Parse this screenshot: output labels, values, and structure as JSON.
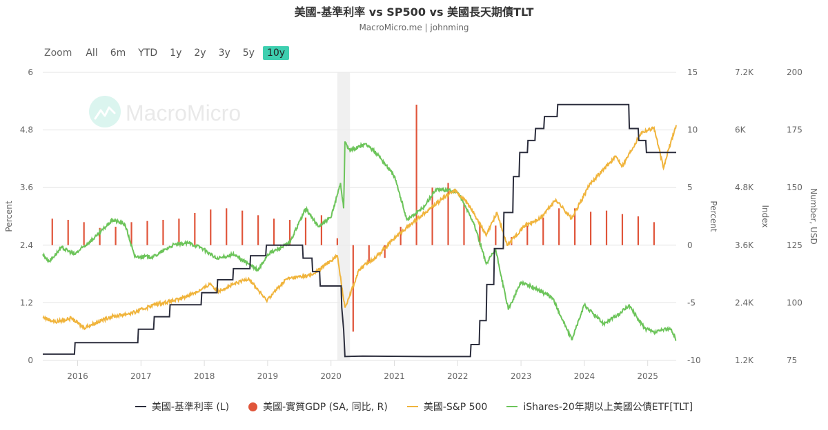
{
  "header": {
    "title": "美國-基準利率 vs SP500 vs 美國長天期債TLT",
    "subtitle": "MacroMicro.me | johnming"
  },
  "range_selector": {
    "label": "Zoom",
    "buttons": [
      "All",
      "6m",
      "YTD",
      "1y",
      "2y",
      "3y",
      "5y",
      "10y"
    ],
    "active": "10y",
    "active_color": "#3ecfb0"
  },
  "watermark": {
    "text": "MacroMicro",
    "icon": "macromicro-logo-icon"
  },
  "legend": [
    {
      "label": "美國-基準利率 (L)",
      "color": "#2b2d3c",
      "symbol": "line"
    },
    {
      "label": "美國-實質GDP (SA, 同比, R)",
      "color": "#e0553a",
      "symbol": "dot"
    },
    {
      "label": "美國-S&P 500",
      "color": "#f0b43c",
      "symbol": "line"
    },
    {
      "label": "iShares-20年期以上美國公債ETF[TLT]",
      "color": "#6cc45a",
      "symbol": "line"
    }
  ],
  "axes": {
    "left": {
      "title": "Percent",
      "ticks": [
        "6",
        "4.8",
        "3.6",
        "2.4",
        "1.2",
        "0"
      ]
    },
    "right1": {
      "title": "Percent",
      "ticks": [
        "15",
        "10",
        "5",
        "0",
        "-5",
        "-10"
      ]
    },
    "right2": {
      "title": "Index",
      "ticks": [
        "7.2K",
        "6K",
        "4.8K",
        "3.6K",
        "2.4K",
        "1.2K"
      ]
    },
    "right3": {
      "title": "Number, USD",
      "ticks": [
        "200",
        "175",
        "150",
        "125",
        "100",
        "75"
      ]
    },
    "x": {
      "ticks": [
        "2016",
        "2017",
        "2018",
        "2019",
        "2020",
        "2021",
        "2022",
        "2023",
        "2024",
        "2025"
      ]
    }
  },
  "chart_data": {
    "type": "line",
    "title": "美國-基準利率 vs SP500 vs 美國長天期債TLT",
    "subtitle": "MacroMicro.me | johnming",
    "x_range": [
      2015.45,
      2025.45
    ],
    "recession_band": [
      2020.1,
      2020.3
    ],
    "grid": true,
    "legend_position": "bottom",
    "series": [
      {
        "name": "美國-基準利率 (L)",
        "axis": "left",
        "ylim": [
          0,
          6
        ],
        "type": "step",
        "points": [
          [
            2015.45,
            0.13
          ],
          [
            2015.95,
            0.13
          ],
          [
            2015.96,
            0.37
          ],
          [
            2016.95,
            0.37
          ],
          [
            2016.96,
            0.65
          ],
          [
            2017.2,
            0.65
          ],
          [
            2017.21,
            0.91
          ],
          [
            2017.45,
            0.91
          ],
          [
            2017.46,
            1.16
          ],
          [
            2017.95,
            1.16
          ],
          [
            2017.96,
            1.41
          ],
          [
            2018.2,
            1.41
          ],
          [
            2018.21,
            1.68
          ],
          [
            2018.45,
            1.68
          ],
          [
            2018.46,
            1.91
          ],
          [
            2018.72,
            1.91
          ],
          [
            2018.73,
            2.18
          ],
          [
            2018.97,
            2.18
          ],
          [
            2018.98,
            2.4
          ],
          [
            2019.55,
            2.4
          ],
          [
            2019.56,
            2.13
          ],
          [
            2019.7,
            2.13
          ],
          [
            2019.71,
            1.85
          ],
          [
            2019.82,
            1.85
          ],
          [
            2019.83,
            1.55
          ],
          [
            2020.16,
            1.55
          ],
          [
            2020.17,
            1.1
          ],
          [
            2020.2,
            0.65
          ],
          [
            2020.22,
            0.08
          ],
          [
            2020.5,
            0.09
          ],
          [
            2021.5,
            0.08
          ],
          [
            2022.2,
            0.08
          ],
          [
            2022.21,
            0.33
          ],
          [
            2022.34,
            0.33
          ],
          [
            2022.35,
            0.83
          ],
          [
            2022.45,
            0.83
          ],
          [
            2022.46,
            1.58
          ],
          [
            2022.57,
            1.58
          ],
          [
            2022.58,
            2.33
          ],
          [
            2022.72,
            2.33
          ],
          [
            2022.73,
            3.08
          ],
          [
            2022.87,
            3.08
          ],
          [
            2022.88,
            3.83
          ],
          [
            2022.97,
            3.83
          ],
          [
            2022.98,
            4.33
          ],
          [
            2023.1,
            4.33
          ],
          [
            2023.11,
            4.58
          ],
          [
            2023.22,
            4.58
          ],
          [
            2023.23,
            4.83
          ],
          [
            2023.36,
            4.83
          ],
          [
            2023.37,
            5.08
          ],
          [
            2023.57,
            5.08
          ],
          [
            2023.58,
            5.33
          ],
          [
            2024.7,
            5.33
          ],
          [
            2024.71,
            4.83
          ],
          [
            2024.85,
            4.83
          ],
          [
            2024.86,
            4.58
          ],
          [
            2024.97,
            4.58
          ],
          [
            2024.98,
            4.33
          ],
          [
            2025.45,
            4.33
          ]
        ]
      },
      {
        "name": "美國-實質GDP (SA, 同比, R)",
        "axis": "right1",
        "ylim": [
          -10,
          15
        ],
        "type": "bar",
        "points": [
          [
            2015.6,
            2.3
          ],
          [
            2015.85,
            2.2
          ],
          [
            2016.1,
            2.0
          ],
          [
            2016.35,
            1.5
          ],
          [
            2016.6,
            1.6
          ],
          [
            2016.85,
            2.0
          ],
          [
            2017.1,
            2.1
          ],
          [
            2017.35,
            2.2
          ],
          [
            2017.6,
            2.3
          ],
          [
            2017.85,
            2.8
          ],
          [
            2018.1,
            3.1
          ],
          [
            2018.35,
            3.2
          ],
          [
            2018.6,
            3.0
          ],
          [
            2018.85,
            2.6
          ],
          [
            2019.1,
            2.3
          ],
          [
            2019.35,
            2.2
          ],
          [
            2019.6,
            2.4
          ],
          [
            2019.85,
            2.6
          ],
          [
            2020.1,
            0.6
          ],
          [
            2020.35,
            -7.5
          ],
          [
            2020.6,
            -1.5
          ],
          [
            2020.85,
            -1.1
          ],
          [
            2021.1,
            1.6
          ],
          [
            2021.35,
            12.2
          ],
          [
            2021.6,
            5.0
          ],
          [
            2021.85,
            5.4
          ],
          [
            2022.1,
            3.6
          ],
          [
            2022.35,
            1.9
          ],
          [
            2022.6,
            1.7
          ],
          [
            2022.85,
            0.7
          ],
          [
            2023.1,
            1.7
          ],
          [
            2023.35,
            2.4
          ],
          [
            2023.6,
            3.2
          ],
          [
            2023.85,
            3.2
          ],
          [
            2024.1,
            2.9
          ],
          [
            2024.35,
            3.0
          ],
          [
            2024.6,
            2.7
          ],
          [
            2024.85,
            2.5
          ],
          [
            2025.1,
            2.0
          ]
        ]
      },
      {
        "name": "美國-S&P 500",
        "axis": "right2",
        "ylim": [
          1200,
          7200
        ],
        "points": [
          [
            2015.45,
            2100
          ],
          [
            2015.65,
            2000
          ],
          [
            2015.9,
            2080
          ],
          [
            2016.1,
            1880
          ],
          [
            2016.5,
            2100
          ],
          [
            2016.9,
            2200
          ],
          [
            2017.2,
            2360
          ],
          [
            2017.6,
            2470
          ],
          [
            2017.95,
            2670
          ],
          [
            2018.1,
            2800
          ],
          [
            2018.2,
            2640
          ],
          [
            2018.7,
            2910
          ],
          [
            2018.98,
            2450
          ],
          [
            2019.3,
            2900
          ],
          [
            2019.7,
            2980
          ],
          [
            2020.1,
            3380
          ],
          [
            2020.22,
            2300
          ],
          [
            2020.45,
            3100
          ],
          [
            2020.75,
            3400
          ],
          [
            2021.0,
            3750
          ],
          [
            2021.5,
            4300
          ],
          [
            2021.95,
            4760
          ],
          [
            2022.2,
            4400
          ],
          [
            2022.45,
            3800
          ],
          [
            2022.62,
            4280
          ],
          [
            2022.78,
            3600
          ],
          [
            2023.05,
            4000
          ],
          [
            2023.3,
            4150
          ],
          [
            2023.55,
            4550
          ],
          [
            2023.8,
            4150
          ],
          [
            2024.1,
            4900
          ],
          [
            2024.5,
            5450
          ],
          [
            2024.6,
            5250
          ],
          [
            2024.9,
            5950
          ],
          [
            2025.1,
            6050
          ],
          [
            2025.25,
            5200
          ],
          [
            2025.33,
            5600
          ],
          [
            2025.45,
            6100
          ]
        ]
      },
      {
        "name": "iShares-20年期以上美國公債ETF[TLT]",
        "axis": "right3",
        "ylim": [
          75,
          200
        ],
        "points": [
          [
            2015.45,
            121
          ],
          [
            2015.55,
            118
          ],
          [
            2015.75,
            124
          ],
          [
            2015.95,
            121
          ],
          [
            2016.3,
            129
          ],
          [
            2016.55,
            136
          ],
          [
            2016.75,
            134
          ],
          [
            2016.9,
            120
          ],
          [
            2017.2,
            120
          ],
          [
            2017.5,
            125
          ],
          [
            2017.75,
            126
          ],
          [
            2017.95,
            124
          ],
          [
            2018.2,
            119
          ],
          [
            2018.45,
            121
          ],
          [
            2018.7,
            117
          ],
          [
            2018.85,
            114
          ],
          [
            2019.0,
            121
          ],
          [
            2019.35,
            126
          ],
          [
            2019.6,
            141
          ],
          [
            2019.8,
            133
          ],
          [
            2020.0,
            137
          ],
          [
            2020.15,
            152
          ],
          [
            2020.2,
            141
          ],
          [
            2020.22,
            170
          ],
          [
            2020.3,
            166
          ],
          [
            2020.55,
            169
          ],
          [
            2020.75,
            164
          ],
          [
            2021.0,
            155
          ],
          [
            2021.2,
            136
          ],
          [
            2021.45,
            141
          ],
          [
            2021.65,
            149
          ],
          [
            2021.85,
            149
          ],
          [
            2022.0,
            148
          ],
          [
            2022.25,
            135
          ],
          [
            2022.45,
            117
          ],
          [
            2022.6,
            123
          ],
          [
            2022.8,
            97
          ],
          [
            2023.0,
            109
          ],
          [
            2023.25,
            106
          ],
          [
            2023.5,
            102
          ],
          [
            2023.8,
            84
          ],
          [
            2024.0,
            99
          ],
          [
            2024.3,
            91
          ],
          [
            2024.55,
            95
          ],
          [
            2024.7,
            99
          ],
          [
            2024.95,
            89
          ],
          [
            2025.1,
            87
          ],
          [
            2025.35,
            89
          ],
          [
            2025.45,
            84
          ]
        ]
      }
    ]
  }
}
